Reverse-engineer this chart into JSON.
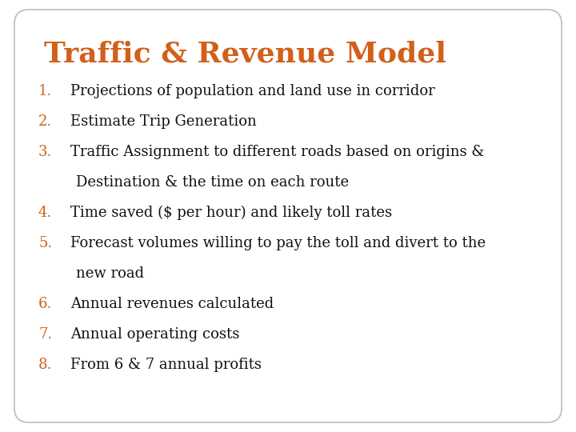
{
  "title": "Traffic & Revenue Model",
  "title_color": "#D2601A",
  "title_fontsize": 26,
  "title_font": "serif",
  "background_color": "#FFFFFF",
  "card_color": "#FFFFFF",
  "border_color": "#BBBBBB",
  "number_color": "#D2601A",
  "text_color": "#111111",
  "item_fontsize": 13,
  "item_font": "serif",
  "items": [
    {
      "num": "1.",
      "lines": [
        "Projections of population and land use in corridor"
      ]
    },
    {
      "num": "2.",
      "lines": [
        "Estimate Trip Generation"
      ]
    },
    {
      "num": "3.",
      "lines": [
        "Traffic Assignment to different roads based on origins &",
        "Destination & the time on each route"
      ]
    },
    {
      "num": "4.",
      "lines": [
        "Time saved ($ per hour) and likely toll rates"
      ]
    },
    {
      "num": "5.",
      "lines": [
        "Forecast volumes willing to pay the toll and divert to the",
        "new road"
      ]
    },
    {
      "num": "6.",
      "lines": [
        "Annual revenues calculated"
      ]
    },
    {
      "num": "7.",
      "lines": [
        "Annual operating costs"
      ]
    },
    {
      "num": "8.",
      "lines": [
        "From 6 & 7 annual profits"
      ]
    }
  ]
}
